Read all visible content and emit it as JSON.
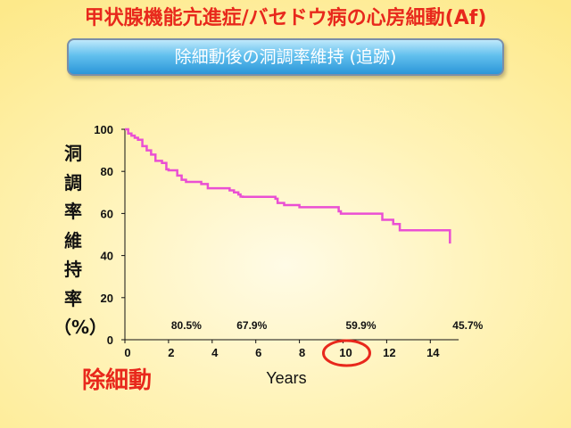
{
  "title": "甲状腺機能亢進症/バセドウ病の心房細動(Af)",
  "subtitle": "除細動後の洞調率維持 (追跡)",
  "bottom_label": "除細動",
  "colors": {
    "title": "#e8281c",
    "line": "#ea4fd3",
    "highlight_circle": "#e8281c",
    "banner_top": "#bfe8fb",
    "banner_bottom": "#2b96d8"
  },
  "chart_data": {
    "type": "line",
    "title": "",
    "xlabel": "Years",
    "ylabel": [
      "洞",
      "調",
      "率",
      "維",
      "持",
      "率",
      "（%）"
    ],
    "xlim": [
      0,
      15
    ],
    "ylim": [
      0,
      100
    ],
    "x_ticks": [
      "0",
      "2",
      "4",
      "6",
      "8",
      "10",
      "12",
      "14"
    ],
    "y_ticks": [
      "0",
      "20",
      "40",
      "60",
      "80",
      "100"
    ],
    "grid": false,
    "series": [
      {
        "step": true,
        "x": [
          0,
          0.15,
          0.3,
          0.45,
          0.6,
          0.8,
          1.0,
          1.2,
          1.4,
          1.7,
          1.9,
          2.0,
          2.4,
          2.6,
          2.8,
          3.5,
          3.8,
          4.8,
          5.0,
          5.2,
          5.3,
          5.4,
          6.9,
          7.0,
          7.3,
          8.0,
          9.8,
          9.9,
          11.8,
          12.3,
          12.6,
          14.9,
          14.9
        ],
        "y": [
          100,
          98,
          97,
          96,
          95,
          92,
          90,
          88,
          85,
          84,
          81,
          80.5,
          78,
          76,
          75,
          74,
          72,
          71,
          70,
          69,
          68,
          67.9,
          67,
          65,
          64,
          63,
          61,
          59.9,
          57,
          55,
          52,
          45.7,
          45.7
        ]
      }
    ],
    "annotations": [
      {
        "x": 2,
        "label": "80.5%"
      },
      {
        "x": 5,
        "label": "67.9%"
      },
      {
        "x": 10,
        "label": "59.9%"
      },
      {
        "x": 14.9,
        "label": "45.7%"
      }
    ],
    "highlighted_tick": "10"
  }
}
